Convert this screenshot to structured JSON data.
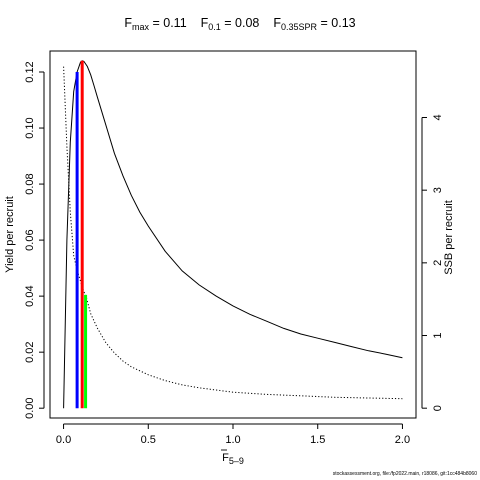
{
  "chart_data": {
    "type": "line",
    "title_parts": [
      {
        "main": "F",
        "sub": "max",
        "rest": " = 0.11"
      },
      {
        "main": "F",
        "sub": "0.1",
        "rest": " = 0.08"
      },
      {
        "main": "F",
        "sub": "0.35SPR",
        "rest": " = 0.13"
      }
    ],
    "xlabel": "F",
    "xlabel_sub": "5–9",
    "ylabel_left": "Yield per recruit",
    "ylabel_right": "SSB per recruit",
    "xlim": [
      -0.08,
      2.08
    ],
    "ylim_left": [
      -0.0035,
      0.1275
    ],
    "ylim_right": [
      -0.135,
      4.915
    ],
    "x_ticks": [
      0,
      0.5,
      1.0,
      1.5,
      2.0
    ],
    "x_tick_labels": [
      "0.0",
      "0.5",
      "1.0",
      "1.5",
      "2.0"
    ],
    "y_left_ticks": [
      0,
      0.02,
      0.04,
      0.06,
      0.08,
      0.1,
      0.12
    ],
    "y_left_tick_labels": [
      "0.00",
      "0.02",
      "0.04",
      "0.06",
      "0.08",
      "0.10",
      "0.12"
    ],
    "y_right_ticks": [
      0,
      1,
      2,
      3,
      4
    ],
    "y_right_tick_labels": [
      "0",
      "1",
      "2",
      "3",
      "4"
    ],
    "series": [
      {
        "axis": "left",
        "style": "solid",
        "color": "#000000",
        "x": [
          0,
          0.02,
          0.04,
          0.06,
          0.08,
          0.1,
          0.11,
          0.12,
          0.14,
          0.16,
          0.18,
          0.2,
          0.25,
          0.3,
          0.35,
          0.4,
          0.45,
          0.5,
          0.6,
          0.7,
          0.8,
          0.9,
          1.0,
          1.1,
          1.2,
          1.3,
          1.4,
          1.5,
          1.6,
          1.7,
          1.8,
          1.9,
          2.0
        ],
        "y": [
          0,
          0.06,
          0.095,
          0.113,
          0.12,
          0.1235,
          0.124,
          0.1238,
          0.122,
          0.119,
          0.115,
          0.111,
          0.101,
          0.091,
          0.083,
          0.076,
          0.07,
          0.065,
          0.056,
          0.049,
          0.044,
          0.04,
          0.0365,
          0.0335,
          0.031,
          0.0285,
          0.0265,
          0.025,
          0.0235,
          0.022,
          0.0205,
          0.0193,
          0.018
        ]
      },
      {
        "axis": "right",
        "style": "dotted",
        "color": "#000000",
        "x": [
          0,
          0.02,
          0.04,
          0.06,
          0.08,
          0.1,
          0.11,
          0.12,
          0.13,
          0.16,
          0.2,
          0.25,
          0.3,
          0.35,
          0.4,
          0.5,
          0.6,
          0.7,
          0.8,
          0.9,
          1.0,
          1.2,
          1.4,
          1.6,
          1.8,
          2.0
        ],
        "y": [
          4.7,
          3.6,
          2.7,
          2.1,
          1.9,
          1.75,
          1.67,
          1.6,
          1.56,
          1.3,
          1.1,
          0.9,
          0.76,
          0.65,
          0.57,
          0.46,
          0.38,
          0.32,
          0.28,
          0.25,
          0.22,
          0.19,
          0.17,
          0.15,
          0.14,
          0.13
        ]
      }
    ],
    "reference_lines": [
      {
        "name": "F0.1",
        "x": 0.08,
        "axis": "left",
        "y_top": 0.12,
        "color": "#0000ff"
      },
      {
        "name": "Fmax",
        "x": 0.11,
        "axis": "left",
        "y_top": 0.124,
        "color": "#ff0000"
      },
      {
        "name": "F0.35SPR",
        "x": 0.13,
        "axis": "right",
        "y_top": 1.56,
        "color": "#00ff00"
      }
    ],
    "grid": false,
    "legend": "none"
  },
  "footer_text": "stockassessment.org, file:/fp2022.main, r18086, git:1cc484b8060"
}
